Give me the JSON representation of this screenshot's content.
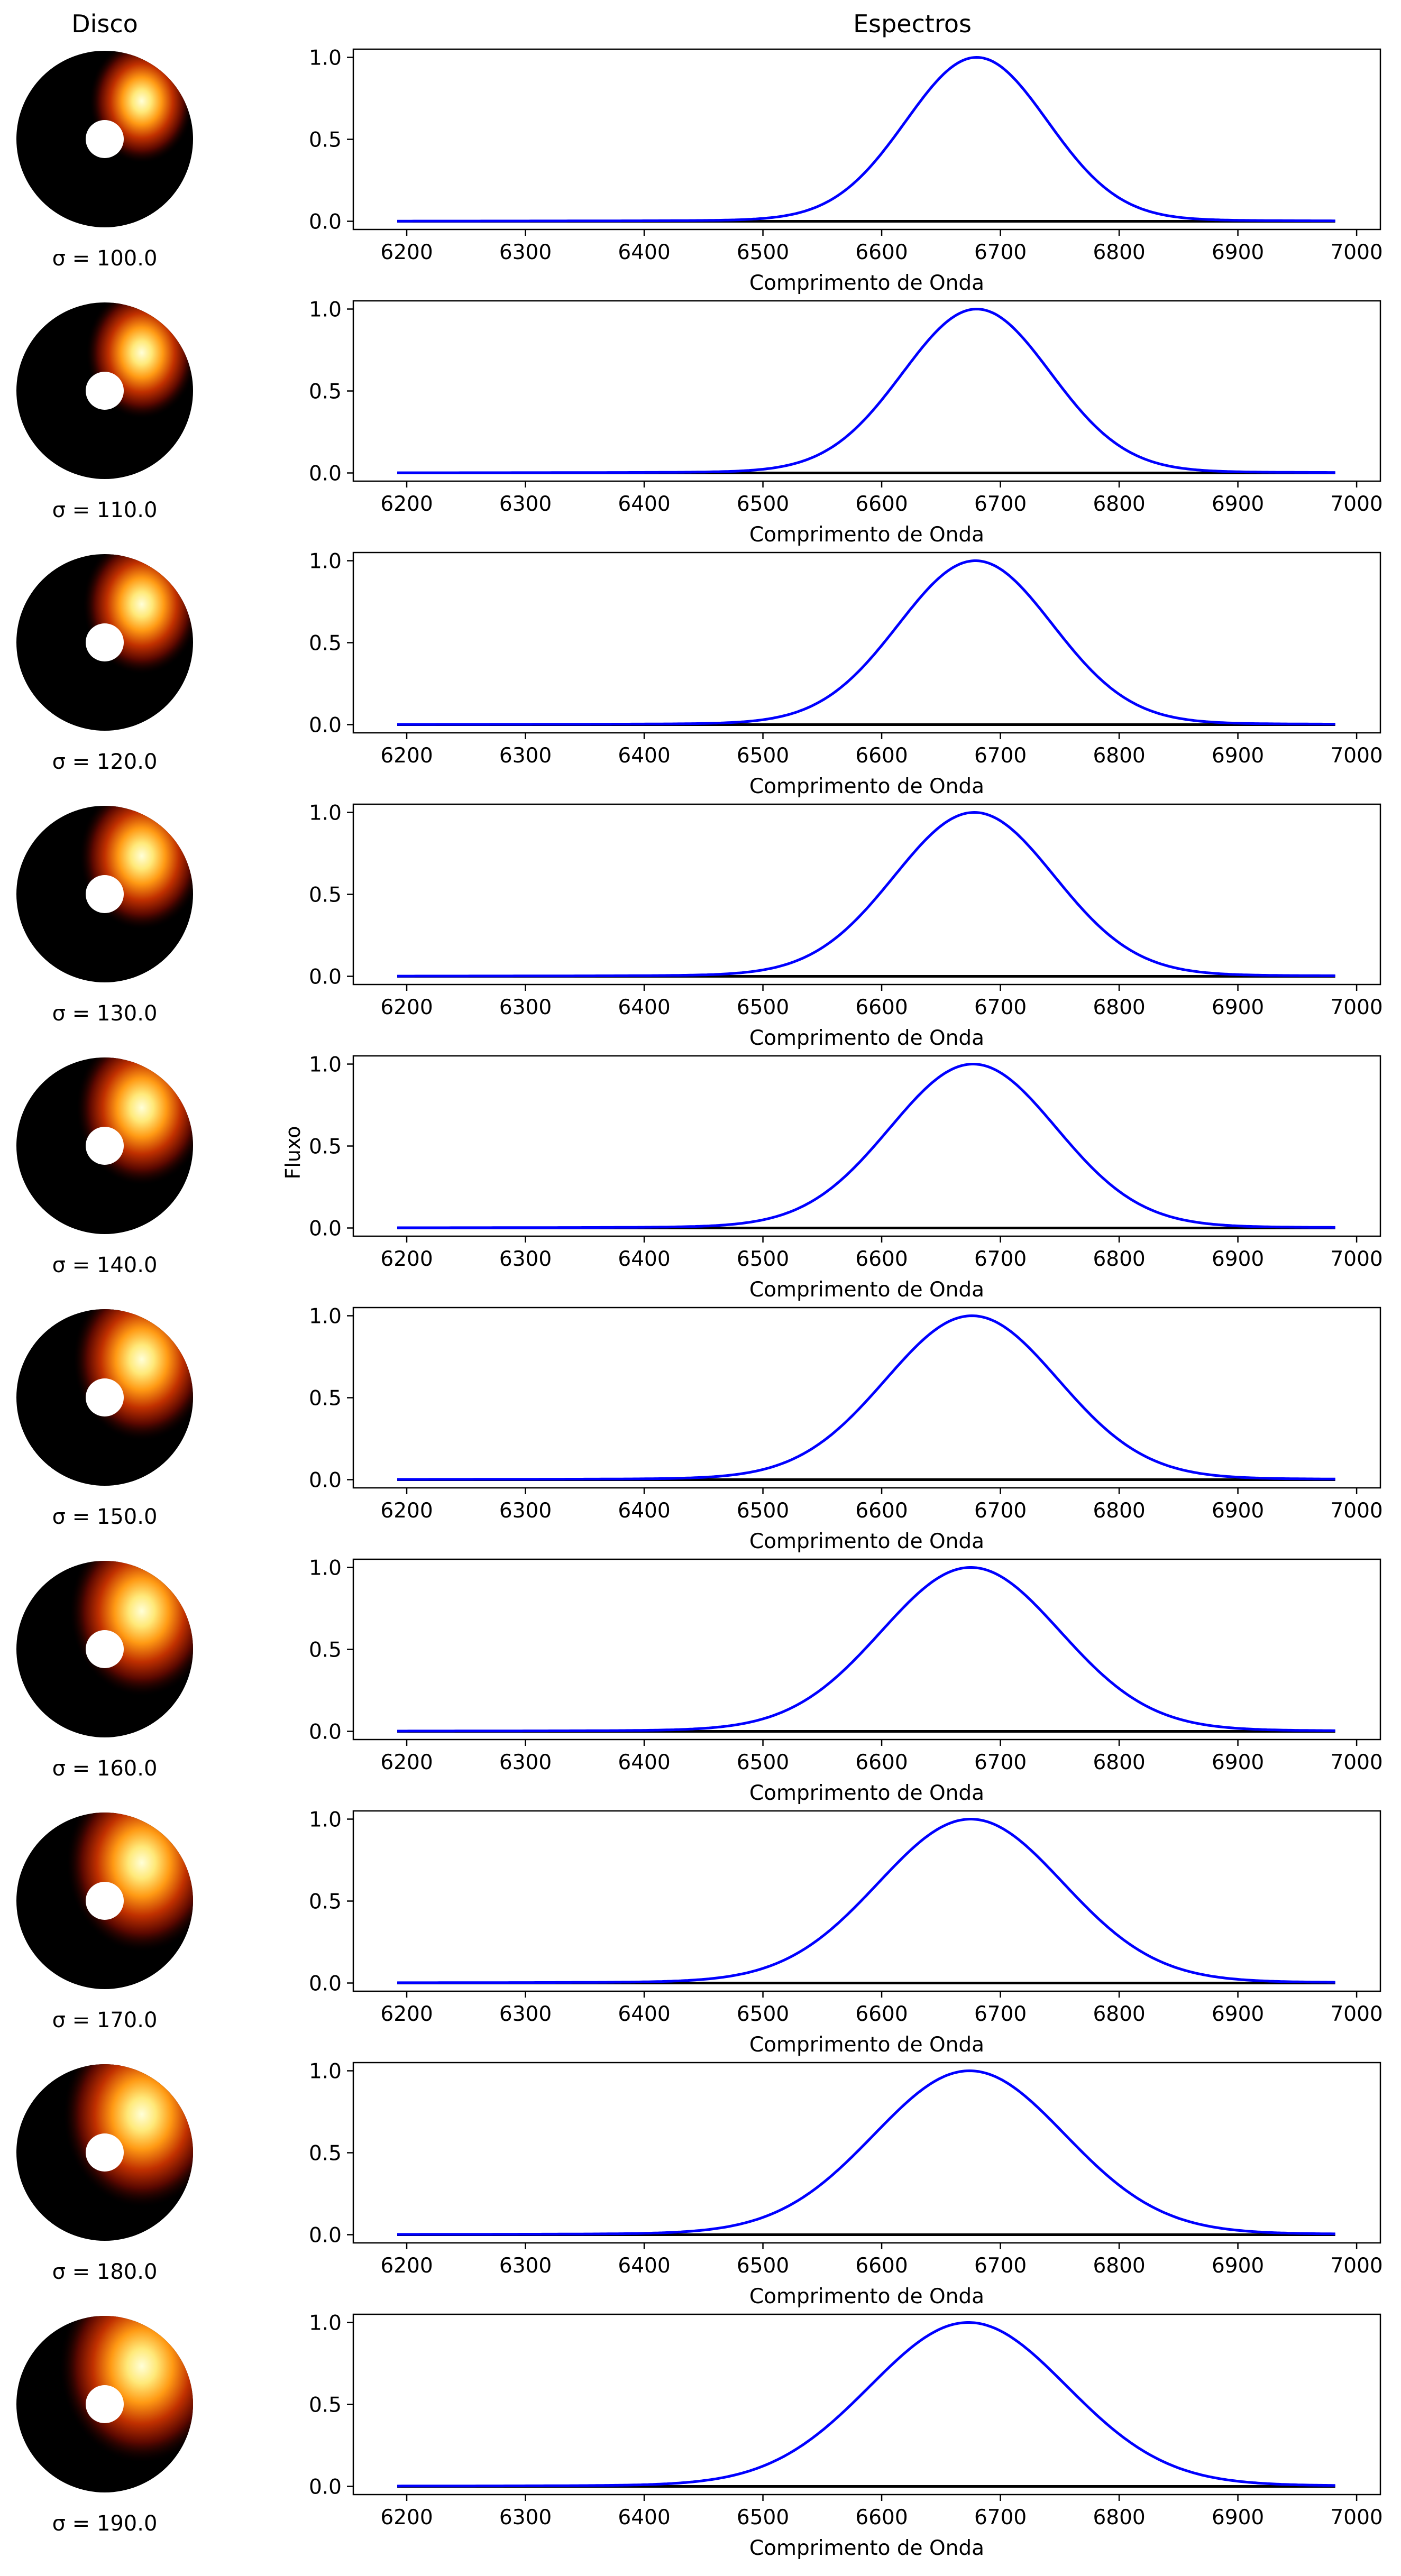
{
  "headers": {
    "left": "Disco",
    "right": "Espectros",
    "ylabel": "Fluxo"
  },
  "colors": {
    "spectrum": "#0000ff",
    "continuum": "#000000",
    "disk_background": "#000000",
    "colormap": "afmhot"
  },
  "rows": [
    {
      "sigma_label": "σ = 100.0"
    },
    {
      "sigma_label": "σ = 110.0"
    },
    {
      "sigma_label": "σ = 120.0"
    },
    {
      "sigma_label": "σ = 130.0"
    },
    {
      "sigma_label": "σ = 140.0"
    },
    {
      "sigma_label": "σ = 150.0"
    },
    {
      "sigma_label": "σ = 160.0"
    },
    {
      "sigma_label": "σ = 170.0"
    },
    {
      "sigma_label": "σ = 180.0"
    },
    {
      "sigma_label": "σ = 190.0"
    }
  ],
  "chart_data": {
    "type": "line",
    "title": "Espectros",
    "xlabel": "Comprimento de Onda",
    "ylabel": "Fluxo",
    "x_range": [
      6192,
      6982
    ],
    "xlim": [
      6155,
      7020
    ],
    "ylim": [
      -0.05,
      1.05
    ],
    "xticks": [
      6200,
      6300,
      6400,
      6500,
      6600,
      6700,
      6800,
      6900,
      7000
    ],
    "yticks": [
      "0.0",
      "0.5",
      "1.0"
    ],
    "grid": false,
    "panels": [
      {
        "sigma": 100.0,
        "peak_x": 6680,
        "peak_y": 1.0,
        "baseline": 0.0
      },
      {
        "sigma": 110.0,
        "peak_x": 6680,
        "peak_y": 1.0,
        "baseline": 0.0
      },
      {
        "sigma": 120.0,
        "peak_x": 6679,
        "peak_y": 1.0,
        "baseline": 0.0
      },
      {
        "sigma": 130.0,
        "peak_x": 6678,
        "peak_y": 1.0,
        "baseline": 0.0
      },
      {
        "sigma": 140.0,
        "peak_x": 6677,
        "peak_y": 1.0,
        "baseline": 0.0
      },
      {
        "sigma": 150.0,
        "peak_x": 6676,
        "peak_y": 1.0,
        "baseline": 0.0
      },
      {
        "sigma": 160.0,
        "peak_x": 6675,
        "peak_y": 1.0,
        "baseline": 0.0
      },
      {
        "sigma": 170.0,
        "peak_x": 6675,
        "peak_y": 1.0,
        "baseline": 0.0
      },
      {
        "sigma": 180.0,
        "peak_x": 6674,
        "peak_y": 1.0,
        "baseline": 0.0
      },
      {
        "sigma": 190.0,
        "peak_x": 6673,
        "peak_y": 1.0,
        "baseline": 0.0
      }
    ]
  }
}
